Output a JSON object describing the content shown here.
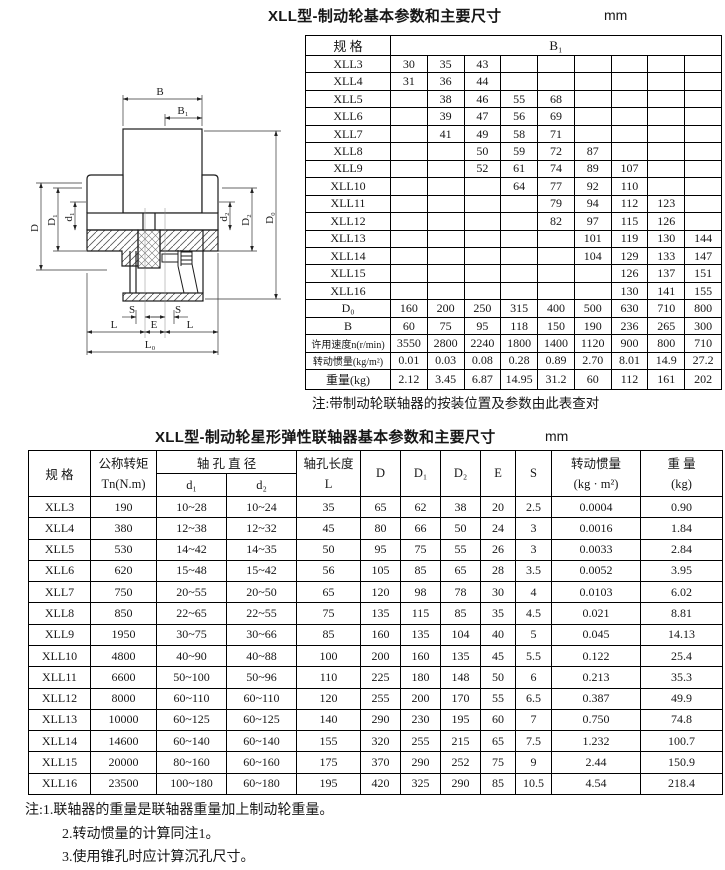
{
  "colors": {
    "ink": "#161616",
    "paper": "#ffffff"
  },
  "page": {
    "table1_title": "XLL型-制动轮基本参数和主要尺寸",
    "unit1": "mm",
    "table1_note": "注:带制动轮联轴器的按装位置及参数由此表查对",
    "table2_title": "XLL型-制动轮星形弹性联轴器基本参数和主要尺寸",
    "unit2": "mm",
    "footnotes": [
      "注:1.联轴器的重量是联轴器重量加上制动轮重量。",
      "2.转动惯量的计算同注1。",
      "3.使用锥孔时应计算沉孔尺寸。"
    ]
  },
  "drawing": {
    "labels": {
      "b": "B",
      "b1": "B₁",
      "d_cap": "D",
      "d1_cap": "D₁",
      "d1": "d₁",
      "d2": "d₂",
      "d2_cap": "D₂",
      "d0_cap": "D₀",
      "s": "S",
      "l": "L",
      "e": "E",
      "l0": "L₀"
    }
  },
  "table1": {
    "header_spec": "规  格",
    "header_b1": "B₁",
    "rows": [
      {
        "label": "XLL3",
        "cells": [
          "30",
          "35",
          "43",
          "",
          "",
          "",
          "",
          "",
          ""
        ]
      },
      {
        "label": "XLL4",
        "cells": [
          "31",
          "36",
          "44",
          "",
          "",
          "",
          "",
          "",
          ""
        ]
      },
      {
        "label": "XLL5",
        "cells": [
          "",
          "38",
          "46",
          "55",
          "68",
          "",
          "",
          "",
          ""
        ]
      },
      {
        "label": "XLL6",
        "cells": [
          "",
          "39",
          "47",
          "56",
          "69",
          "",
          "",
          "",
          ""
        ]
      },
      {
        "label": "XLL7",
        "cells": [
          "",
          "41",
          "49",
          "58",
          "71",
          "",
          "",
          "",
          ""
        ]
      },
      {
        "label": "XLL8",
        "cells": [
          "",
          "",
          "50",
          "59",
          "72",
          "87",
          "",
          "",
          ""
        ]
      },
      {
        "label": "XLL9",
        "cells": [
          "",
          "",
          "52",
          "61",
          "74",
          "89",
          "107",
          "",
          ""
        ]
      },
      {
        "label": "XLL10",
        "cells": [
          "",
          "",
          "",
          "64",
          "77",
          "92",
          "110",
          "",
          ""
        ]
      },
      {
        "label": "XLL11",
        "cells": [
          "",
          "",
          "",
          "",
          "79",
          "94",
          "112",
          "123",
          ""
        ]
      },
      {
        "label": "XLL12",
        "cells": [
          "",
          "",
          "",
          "",
          "82",
          "97",
          "115",
          "126",
          ""
        ]
      },
      {
        "label": "XLL13",
        "cells": [
          "",
          "",
          "",
          "",
          "",
          "101",
          "119",
          "130",
          "144"
        ]
      },
      {
        "label": "XLL14",
        "cells": [
          "",
          "",
          "",
          "",
          "",
          "104",
          "129",
          "133",
          "147"
        ]
      },
      {
        "label": "XLL15",
        "cells": [
          "",
          "",
          "",
          "",
          "",
          "",
          "126",
          "137",
          "151"
        ]
      },
      {
        "label": "XLL16",
        "cells": [
          "",
          "",
          "",
          "",
          "",
          "",
          "130",
          "141",
          "155"
        ]
      }
    ],
    "bottom_rows": [
      {
        "label": "D₀",
        "cells": [
          "160",
          "200",
          "250",
          "315",
          "400",
          "500",
          "630",
          "710",
          "800"
        ]
      },
      {
        "label": "B",
        "cells": [
          "60",
          "75",
          "95",
          "118",
          "150",
          "190",
          "236",
          "265",
          "300"
        ]
      },
      {
        "label": "许用速度n(r/min)",
        "cells": [
          "3550",
          "2800",
          "2240",
          "1800",
          "1400",
          "1120",
          "900",
          "800",
          "710"
        ]
      },
      {
        "label": "转动惯量(kg/m²)",
        "cells": [
          "0.01",
          "0.03",
          "0.08",
          "0.28",
          "0.89",
          "2.70",
          "8.01",
          "14.9",
          "27.2"
        ]
      },
      {
        "label": "重量(kg)",
        "cells": [
          "2.12",
          "3.45",
          "6.87",
          "14.95",
          "31.2",
          "60",
          "112",
          "161",
          "202"
        ]
      }
    ]
  },
  "table2": {
    "h_spec": "规   格",
    "h_torque1": "公称转矩",
    "h_torque2": "Tn(N.m)",
    "h_bore": "轴 孔 直 径",
    "h_d1": "d₁",
    "h_d2": "d₂",
    "h_len1": "轴孔长度",
    "h_len2": "L",
    "h_D": "D",
    "h_D1": "D₁",
    "h_D2": "D₂",
    "h_E": "E",
    "h_S": "S",
    "h_inertia1": "转动惯量",
    "h_inertia2": "(kg · m²)",
    "h_weight1": "重 量",
    "h_weight2": "(kg)",
    "rows": [
      [
        "XLL3",
        "190",
        "10~28",
        "10~24",
        "35",
        "65",
        "62",
        "38",
        "20",
        "2.5",
        "0.0004",
        "0.90"
      ],
      [
        "XLL4",
        "380",
        "12~38",
        "12~32",
        "45",
        "80",
        "66",
        "50",
        "24",
        "3",
        "0.0016",
        "1.84"
      ],
      [
        "XLL5",
        "530",
        "14~42",
        "14~35",
        "50",
        "95",
        "75",
        "55",
        "26",
        "3",
        "0.0033",
        "2.84"
      ],
      [
        "XLL6",
        "620",
        "15~48",
        "15~42",
        "56",
        "105",
        "85",
        "65",
        "28",
        "3.5",
        "0.0052",
        "3.95"
      ],
      [
        "XLL7",
        "750",
        "20~55",
        "20~50",
        "65",
        "120",
        "98",
        "78",
        "30",
        "4",
        "0.0103",
        "6.02"
      ],
      [
        "XLL8",
        "850",
        "22~65",
        "22~55",
        "75",
        "135",
        "115",
        "85",
        "35",
        "4.5",
        "0.021",
        "8.81"
      ],
      [
        "XLL9",
        "1950",
        "30~75",
        "30~66",
        "85",
        "160",
        "135",
        "104",
        "40",
        "5",
        "0.045",
        "14.13"
      ],
      [
        "XLL10",
        "4800",
        "40~90",
        "40~88",
        "100",
        "200",
        "160",
        "135",
        "45",
        "5.5",
        "0.122",
        "25.4"
      ],
      [
        "XLL11",
        "6600",
        "50~100",
        "50~96",
        "110",
        "225",
        "180",
        "148",
        "50",
        "6",
        "0.213",
        "35.3"
      ],
      [
        "XLL12",
        "8000",
        "60~110",
        "60~110",
        "120",
        "255",
        "200",
        "170",
        "55",
        "6.5",
        "0.387",
        "49.9"
      ],
      [
        "XLL13",
        "10000",
        "60~125",
        "60~125",
        "140",
        "290",
        "230",
        "195",
        "60",
        "7",
        "0.750",
        "74.8"
      ],
      [
        "XLL14",
        "14600",
        "60~140",
        "60~140",
        "155",
        "320",
        "255",
        "215",
        "65",
        "7.5",
        "1.232",
        "100.7"
      ],
      [
        "XLL15",
        "20000",
        "80~160",
        "60~160",
        "175",
        "370",
        "290",
        "252",
        "75",
        "9",
        "2.44",
        "150.9"
      ],
      [
        "XLL16",
        "23500",
        "100~180",
        "60~180",
        "195",
        "420",
        "325",
        "290",
        "85",
        "10.5",
        "4.54",
        "218.4"
      ]
    ]
  }
}
